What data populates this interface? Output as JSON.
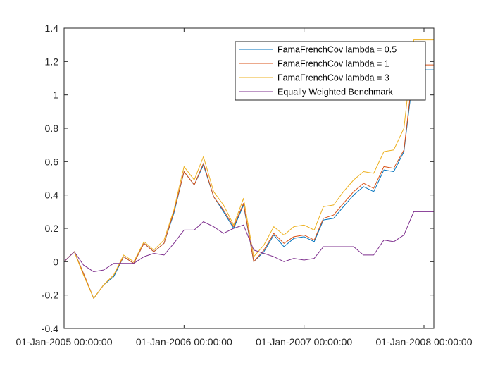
{
  "chart_data": {
    "type": "line",
    "title": "",
    "xlabel": "",
    "ylabel": "",
    "xlim": [
      "2005-01-01",
      "2008-01-31"
    ],
    "ylim": [
      -0.4,
      1.4
    ],
    "grid": false,
    "legend_position": "top-right",
    "x_ticks": [
      {
        "date": "2005-01-01",
        "label": "01-Jan-2005 00:00:00"
      },
      {
        "date": "2006-01-01",
        "label": "01-Jan-2006 00:00:00"
      },
      {
        "date": "2007-01-01",
        "label": "01-Jan-2007 00:00:00"
      },
      {
        "date": "2008-01-01",
        "label": "01-Jan-2008 00:00:00"
      }
    ],
    "y_ticks": [
      {
        "value": -0.4,
        "label": "-0.4"
      },
      {
        "value": -0.2,
        "label": "-0.2"
      },
      {
        "value": 0,
        "label": "0"
      },
      {
        "value": 0.2,
        "label": "0.2"
      },
      {
        "value": 0.4,
        "label": "0.4"
      },
      {
        "value": 0.6,
        "label": "0.6"
      },
      {
        "value": 0.8,
        "label": "0.8"
      },
      {
        "value": 1,
        "label": "1"
      },
      {
        "value": 1.2,
        "label": "1.2"
      },
      {
        "value": 1.4,
        "label": "1.4"
      }
    ],
    "x": [
      "2005-01-01",
      "2005-02-01",
      "2005-03-01",
      "2005-04-01",
      "2005-05-01",
      "2005-06-01",
      "2005-07-01",
      "2005-08-01",
      "2005-09-01",
      "2005-10-01",
      "2005-11-01",
      "2005-12-01",
      "2006-01-01",
      "2006-02-01",
      "2006-03-01",
      "2006-04-01",
      "2006-05-01",
      "2006-06-01",
      "2006-07-01",
      "2006-08-01",
      "2006-09-01",
      "2006-10-01",
      "2006-11-01",
      "2006-12-01",
      "2007-01-01",
      "2007-02-01",
      "2007-03-01",
      "2007-04-01",
      "2007-05-01",
      "2007-06-01",
      "2007-07-01",
      "2007-08-01",
      "2007-09-01",
      "2007-10-01",
      "2007-11-01",
      "2007-12-01",
      "2008-01-01",
      "2008-01-31"
    ],
    "series": [
      {
        "name": "FamaFrenchCov lambda = 0.5",
        "color": "#0072BD",
        "values": [
          0.0,
          0.06,
          -0.07,
          -0.22,
          -0.14,
          -0.09,
          0.03,
          -0.01,
          0.11,
          0.06,
          0.11,
          0.29,
          0.54,
          0.46,
          0.58,
          0.39,
          0.3,
          0.2,
          0.34,
          0.0,
          0.06,
          0.16,
          0.09,
          0.14,
          0.15,
          0.12,
          0.25,
          0.26,
          0.33,
          0.4,
          0.45,
          0.42,
          0.55,
          0.54,
          0.66,
          1.15,
          1.15,
          1.15
        ]
      },
      {
        "name": "FamaFrenchCov lambda = 1",
        "color": "#D95319",
        "values": [
          0.0,
          0.06,
          -0.07,
          -0.22,
          -0.14,
          -0.08,
          0.03,
          -0.01,
          0.11,
          0.06,
          0.11,
          0.3,
          0.54,
          0.46,
          0.59,
          0.39,
          0.31,
          0.21,
          0.35,
          0.0,
          0.07,
          0.17,
          0.11,
          0.15,
          0.16,
          0.13,
          0.26,
          0.28,
          0.35,
          0.42,
          0.47,
          0.44,
          0.57,
          0.56,
          0.67,
          1.18,
          1.18,
          1.18
        ]
      },
      {
        "name": "FamaFrenchCov lambda = 3",
        "color": "#EDB120",
        "values": [
          0.0,
          0.06,
          -0.08,
          -0.22,
          -0.14,
          -0.08,
          0.04,
          -0.0,
          0.12,
          0.07,
          0.13,
          0.31,
          0.57,
          0.49,
          0.63,
          0.42,
          0.34,
          0.22,
          0.38,
          0.03,
          0.1,
          0.21,
          0.16,
          0.21,
          0.22,
          0.19,
          0.33,
          0.34,
          0.42,
          0.49,
          0.54,
          0.53,
          0.66,
          0.67,
          0.8,
          1.33,
          1.33,
          1.33
        ]
      },
      {
        "name": "Equally Weighted Benchmark",
        "color": "#7E2F8E",
        "values": [
          0.0,
          0.06,
          -0.02,
          -0.06,
          -0.05,
          -0.01,
          -0.01,
          -0.01,
          0.03,
          0.05,
          0.04,
          0.11,
          0.19,
          0.19,
          0.24,
          0.21,
          0.17,
          0.2,
          0.22,
          0.07,
          0.05,
          0.03,
          -0.0,
          0.02,
          0.01,
          0.02,
          0.09,
          0.09,
          0.09,
          0.09,
          0.04,
          0.04,
          0.13,
          0.12,
          0.16,
          0.3,
          0.3,
          0.3
        ]
      }
    ]
  }
}
